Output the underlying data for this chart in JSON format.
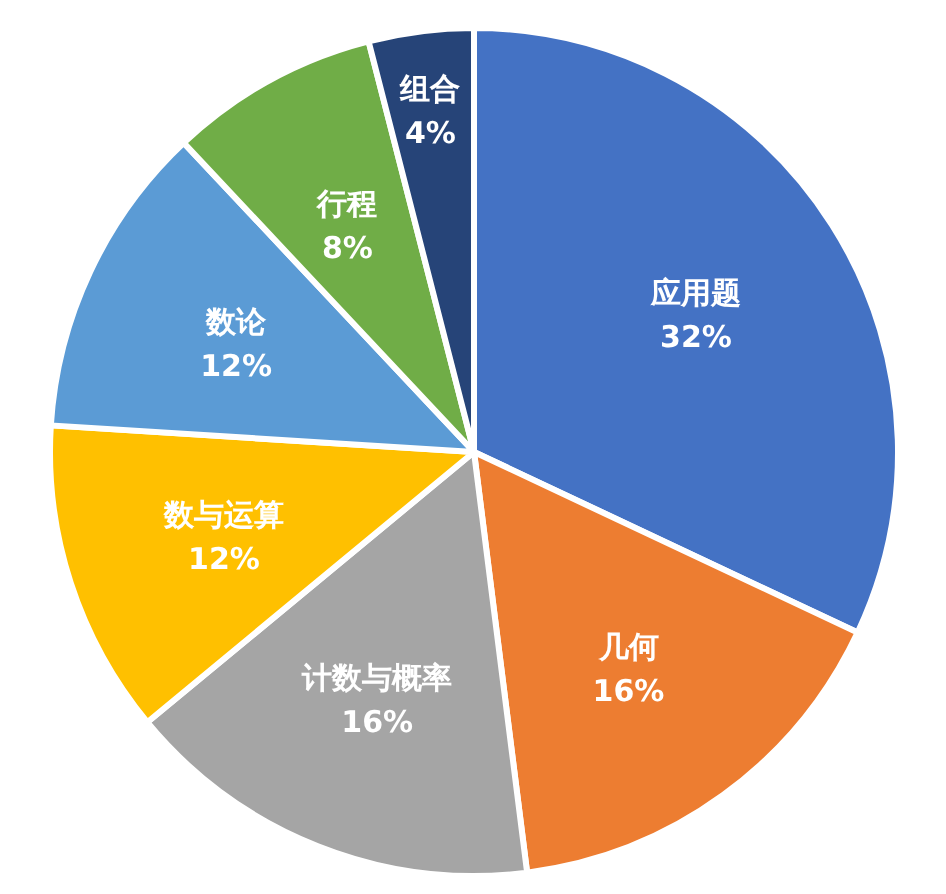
{
  "chart_data": {
    "type": "pie",
    "categories": [
      "应用题",
      "几何",
      "计数与概率",
      "数与运算",
      "数论",
      "行程",
      "组合"
    ],
    "values": [
      32,
      16,
      16,
      12,
      12,
      8,
      4
    ],
    "value_labels": [
      "32%",
      "16%",
      "16%",
      "12%",
      "12%",
      "8%",
      "4%"
    ],
    "colors": [
      "#4472c4",
      "#ed7d31",
      "#a5a5a5",
      "#ffc000",
      "#5b9bd5",
      "#70ad47",
      "#264478"
    ]
  }
}
